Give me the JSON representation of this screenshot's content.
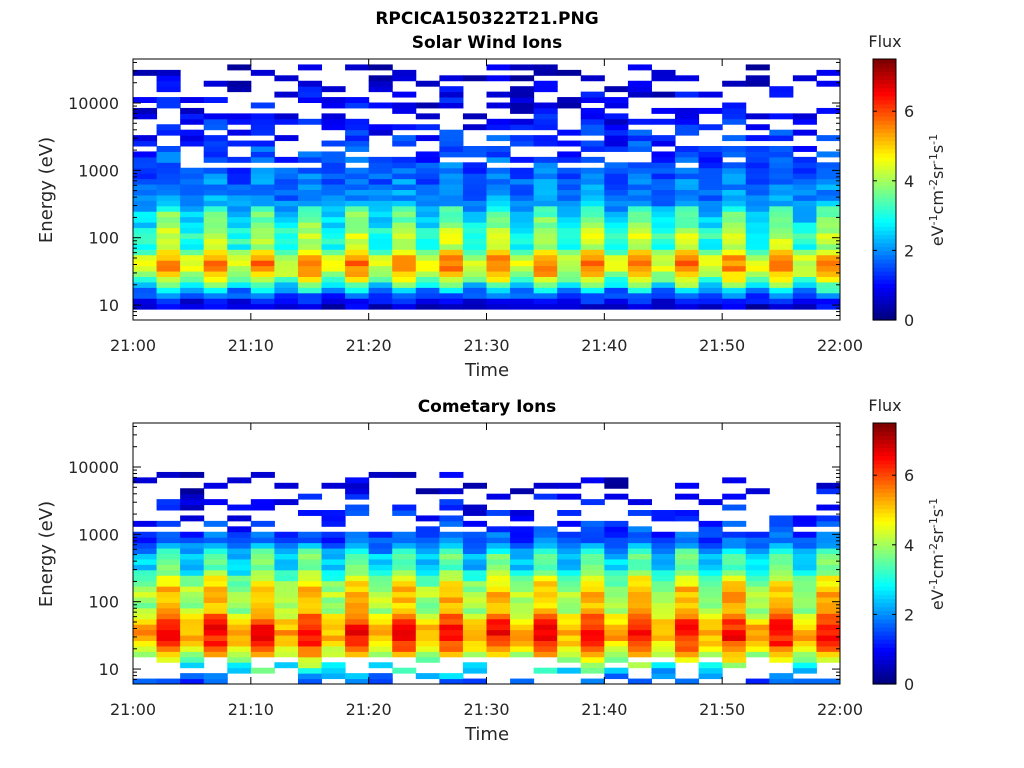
{
  "figure": {
    "title": "RPCICA150322T21.PNG"
  },
  "chart_data": [
    {
      "type": "heatmap",
      "title": "Solar Wind Ions",
      "xlabel": "Time",
      "ylabel": "Energy (eV)",
      "x_ticks": [
        "21:00",
        "21:10",
        "21:20",
        "21:30",
        "21:40",
        "21:50",
        "22:00"
      ],
      "x_range": [
        "21:00",
        "22:00"
      ],
      "y_scale": "log",
      "y_ticks": [
        10,
        100,
        1000,
        10000
      ],
      "y_tick_labels": [
        "10",
        "100",
        "1000",
        "10000"
      ],
      "ylim": [
        6,
        45000
      ],
      "colorbar": {
        "label": "Flux",
        "units_label": "eV-1cm-2sr-1s-1",
        "units_parts": [
          {
            "base": "eV",
            "sup": "-1"
          },
          {
            "base": "cm",
            "sup": "-2"
          },
          {
            "base": "sr",
            "sup": "-1"
          },
          {
            "base": "s",
            "sup": "-1"
          }
        ],
        "range": [
          0,
          7.5
        ],
        "ticks": [
          0,
          2,
          4,
          6
        ],
        "colormap": "jet"
      },
      "profile": {
        "n_time_bins": 30,
        "n_energy_bins": 48,
        "alternating_columns": true,
        "low_energy_cutoff": 8,
        "core": [
          {
            "energy": 40,
            "flux": 5.0,
            "width_decades": 0.3
          },
          {
            "energy": 100,
            "flux": 3.6,
            "width_decades": 0.35
          },
          {
            "energy": 200,
            "flux": 3.0,
            "width_decades": 0.25
          }
        ],
        "background": {
          "from_energy": 300,
          "to_energy": 40000,
          "flux_start": 2.0,
          "flux_end": 0.3
        },
        "coverage_above_kev": 0.7
      }
    },
    {
      "type": "heatmap",
      "title": "Cometary Ions",
      "xlabel": "Time",
      "ylabel": "Energy (eV)",
      "x_ticks": [
        "21:00",
        "21:10",
        "21:20",
        "21:30",
        "21:40",
        "21:50",
        "22:00"
      ],
      "x_range": [
        "21:00",
        "22:00"
      ],
      "y_scale": "log",
      "y_ticks": [
        10,
        100,
        1000,
        10000
      ],
      "y_tick_labels": [
        "10",
        "100",
        "1000",
        "10000"
      ],
      "ylim": [
        6,
        45000
      ],
      "colorbar": {
        "label": "Flux",
        "units_label": "eV-1cm-2sr-1s-1",
        "units_parts": [
          {
            "base": "eV",
            "sup": "-1"
          },
          {
            "base": "cm",
            "sup": "-2"
          },
          {
            "base": "sr",
            "sup": "-1"
          },
          {
            "base": "s",
            "sup": "-1"
          }
        ],
        "range": [
          0,
          7.5
        ],
        "ticks": [
          0,
          2,
          4,
          6
        ],
        "colormap": "jet"
      },
      "profile": {
        "n_time_bins": 30,
        "n_energy_bins": 48,
        "alternating_columns": true,
        "low_energy_cutoff": 14,
        "core": [
          {
            "energy": 35,
            "flux": 5.8,
            "width_decades": 0.45
          },
          {
            "energy": 120,
            "flux": 4.6,
            "width_decades": 0.45
          },
          {
            "energy": 400,
            "flux": 3.0,
            "width_decades": 0.25
          }
        ],
        "background": {
          "from_energy": 700,
          "to_energy": 8000,
          "flux_start": 1.6,
          "flux_end": 0.4
        },
        "coverage_above_kev": 0.45
      }
    }
  ]
}
